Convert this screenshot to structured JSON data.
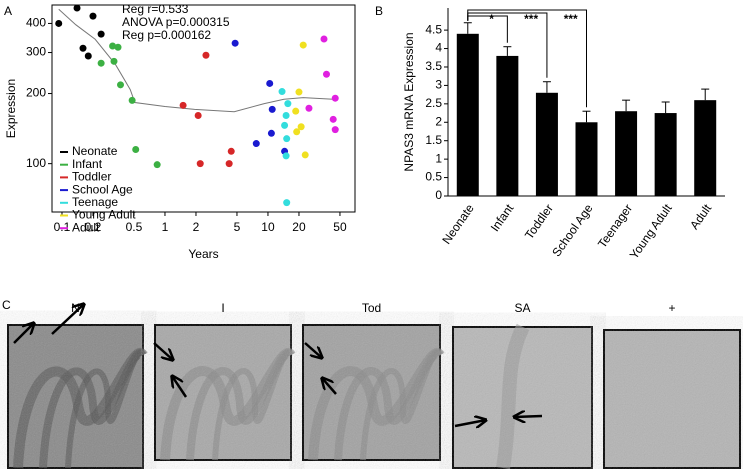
{
  "chart_data": [
    {
      "type": "scatter",
      "panel_label": "A",
      "x_label": "Years",
      "y_label": "Expression",
      "log_x": true,
      "log_y": true,
      "xlim": [
        0.08,
        70
      ],
      "ylim": [
        62,
        480
      ],
      "xticks": [
        0.1,
        0.2,
        0.5,
        1,
        2,
        5,
        10,
        20,
        50
      ],
      "yticks": [
        100,
        200,
        300,
        400
      ],
      "annotations": [
        "Reg r=0.533",
        "ANOVA p=0.000315",
        "Reg p=0.000162"
      ],
      "series": [
        {
          "name": "Neonate",
          "color": "#000000",
          "x": [
            0.093,
            0.14,
            0.2,
            0.18,
            0.16,
            0.24
          ],
          "values": [
            400,
            466,
            430,
            290,
            313,
            360
          ]
        },
        {
          "name": "Infant",
          "color": "#3cb043",
          "x": [
            0.31,
            0.35,
            0.32,
            0.37,
            0.24,
            0.48,
            0.52,
            0.84
          ],
          "values": [
            320,
            316,
            275,
            218,
            270,
            187,
            115,
            99
          ]
        },
        {
          "name": "Toddler",
          "color": "#d62728",
          "x": [
            1.5,
            2.1,
            2.5,
            2.2,
            4.4,
            4.2
          ],
          "values": [
            178,
            161,
            292,
            100,
            113,
            100
          ]
        },
        {
          "name": "School Age",
          "color": "#1a1ad0",
          "x": [
            4.8,
            10.4,
            11,
            10.8,
            7.7,
            14.5
          ],
          "values": [
            329,
            221,
            171,
            135,
            122,
            113
          ]
        },
        {
          "name": "Teenage",
          "color": "#33dddd",
          "x": [
            13.7,
            15.6,
            15,
            14.5,
            15.2,
            15,
            15.2
          ],
          "values": [
            204,
            181,
            161,
            146,
            128,
            108,
            68
          ]
        },
        {
          "name": "Young Adult",
          "color": "#f0e020",
          "x": [
            20,
            22,
            18.6,
            19,
            21,
            23
          ],
          "values": [
            203,
            323,
            168,
            137,
            144,
            109
          ]
        },
        {
          "name": "Adult",
          "color": "#e020e0",
          "x": [
            35,
            37,
            45,
            43,
            45,
            25
          ],
          "values": [
            343,
            242,
            191,
            155,
            140,
            173
          ]
        }
      ],
      "fit": {
        "color": "#777777",
        "x": [
          0.093,
          0.136,
          0.21,
          0.33,
          0.46,
          0.51,
          1,
          1.94,
          4.7,
          9.2,
          14.3,
          22,
          43
        ],
        "values": [
          460,
          395,
          342,
          267,
          208,
          183,
          176,
          171,
          167,
          181,
          189,
          192,
          189
        ]
      }
    },
    {
      "type": "bar",
      "panel_label": "B",
      "y_label": "NPAS3 mRNA Expression",
      "color": "#000000",
      "categories": [
        "Neonate",
        "Infant",
        "Toddler",
        "School Age",
        "Teenager",
        "Young Adult",
        "Adult"
      ],
      "values": [
        4.4,
        3.8,
        2.8,
        2.0,
        2.3,
        2.25,
        2.6
      ],
      "errors": [
        0.3,
        0.25,
        0.3,
        0.3,
        0.3,
        0.3,
        0.3
      ],
      "ylim": [
        0,
        5.1
      ],
      "yticks": [
        0,
        0.5,
        1,
        1.5,
        2,
        2.5,
        3,
        3.5,
        4,
        4.5
      ],
      "significance": [
        "*",
        "***",
        "***"
      ]
    }
  ],
  "panel_c": {
    "label": "C",
    "images": [
      "N",
      "I",
      "Tod",
      "SA",
      "+"
    ]
  }
}
